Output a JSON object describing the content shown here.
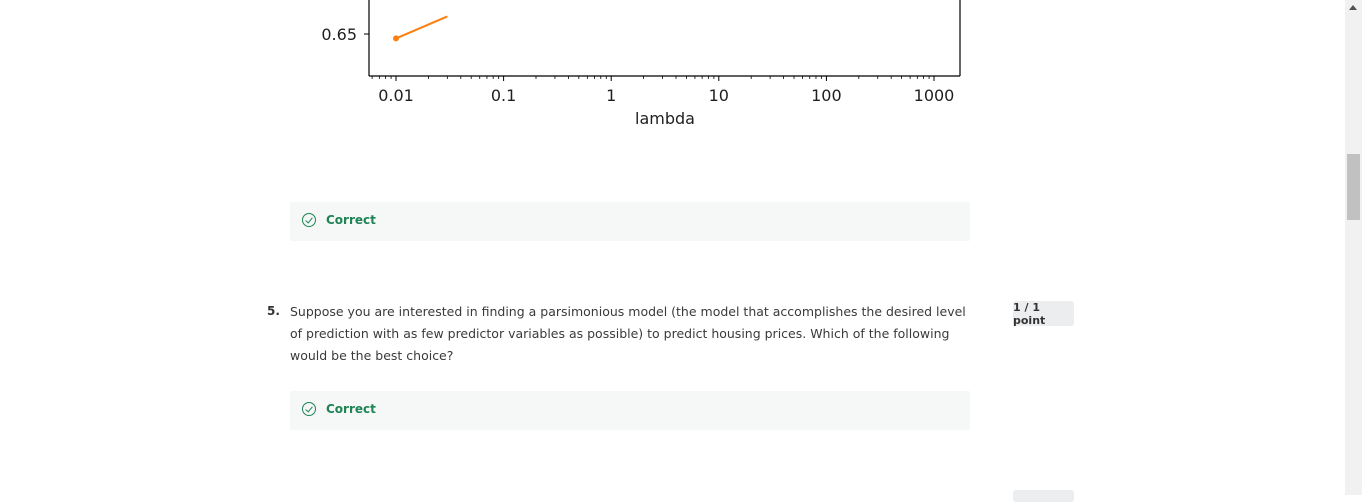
{
  "chart_data": {
    "type": "line",
    "x": [
      0.01,
      0.03
    ],
    "series": [
      {
        "values": [
          0.64,
          0.69
        ],
        "color": "#ff7f0e"
      }
    ],
    "xscale": "log",
    "xlabel": "lambda",
    "x_ticks": [
      "0.01",
      "0.1",
      "1",
      "10",
      "100",
      "1000"
    ],
    "y_ticks": [
      "0.65"
    ],
    "grid": false
  },
  "feedback_1": {
    "label": "Correct",
    "icon": "check-circle-icon"
  },
  "question_5": {
    "number": "5.",
    "text": "Suppose you are interested in finding a parsimonious model (the model that accomplishes the desired level of prediction with as few predictor variables as possible) to predict housing prices. Which of the following would be the best choice?",
    "points": "1 / 1 point"
  },
  "feedback_2": {
    "label": "Correct",
    "icon": "check-circle-icon"
  },
  "colors": {
    "correct": "#1f8354",
    "feedback_bg": "#f5f8f7",
    "line": "#ff7f0e"
  }
}
